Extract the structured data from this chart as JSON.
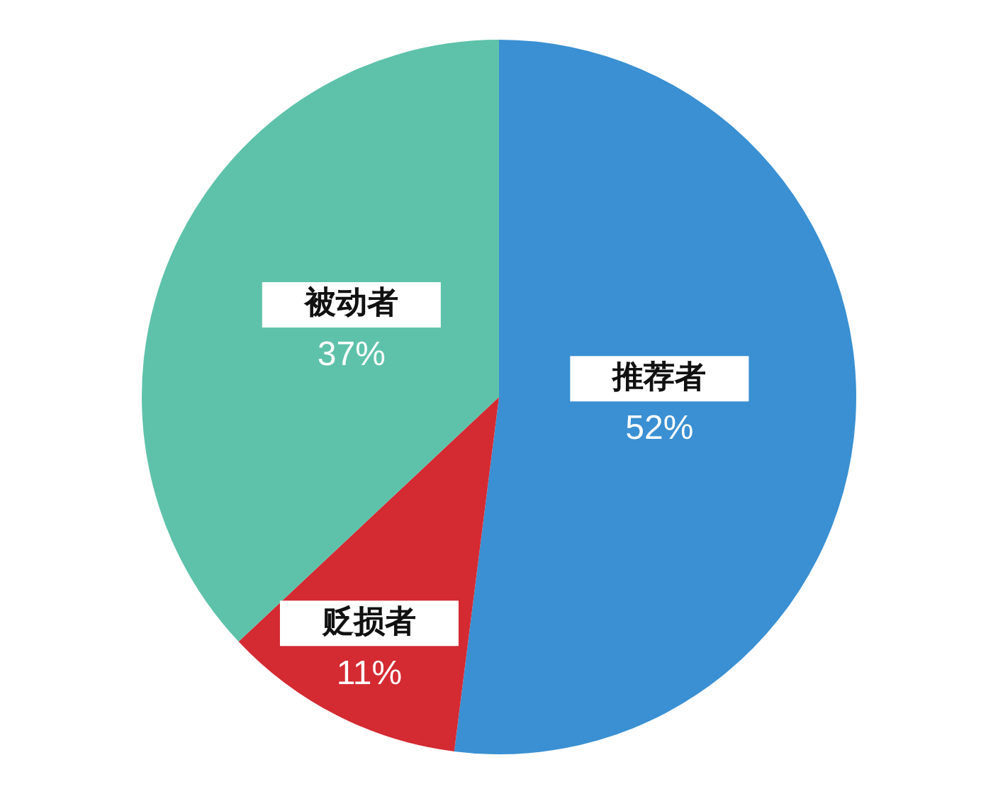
{
  "chart_data": {
    "type": "pie",
    "categories": [
      "推荐者",
      "贬损者",
      "被动者"
    ],
    "values": [
      52,
      11,
      37
    ],
    "value_labels": [
      "52%",
      "11%",
      "37%"
    ],
    "colors": [
      "#3a90d2",
      "#d42a32",
      "#5ec2aa"
    ],
    "legend": false
  }
}
